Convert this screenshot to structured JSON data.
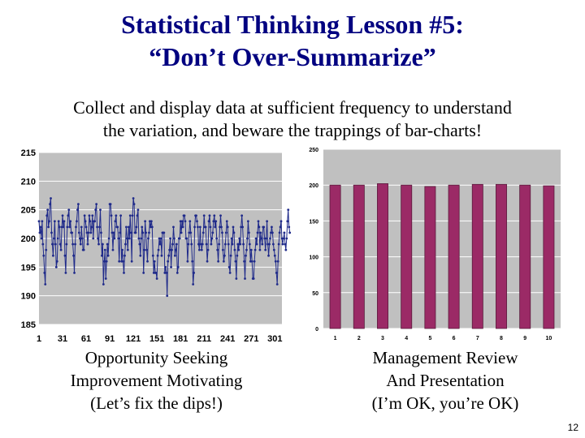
{
  "slide": {
    "title_line1": "Statistical Thinking Lesson #5:",
    "title_line2": "“Don’t Over-Summarize”",
    "subtitle_line1": "Collect and display data at sufficient frequency to understand",
    "subtitle_line2": "the variation, and beware the trappings of bar-charts!",
    "caption_left": [
      "Opportunity Seeking",
      "Improvement Motivating",
      "(Let’s fix the dips!)"
    ],
    "caption_right": [
      "Management Review",
      "And Presentation",
      "(I’m OK, you’re OK)"
    ],
    "page_number": "12",
    "colors": {
      "title": "#000080",
      "plot_bg": "#c0c0c0",
      "line": "#1f2a8a",
      "bar": "#9b2a66"
    }
  },
  "chart_data": [
    {
      "type": "line",
      "x_range": [
        1,
        310
      ],
      "ylim": [
        185,
        215
      ],
      "y_ticks": [
        185,
        190,
        195,
        200,
        205,
        210,
        215
      ],
      "x_tick_labels": [
        "1",
        "31",
        "61",
        "91",
        "121",
        "151",
        "181",
        "211",
        "241",
        "271",
        "301"
      ],
      "grid": true,
      "markers": true,
      "series": [
        {
          "values": [
            203,
            201,
            202,
            200,
            203,
            199,
            197,
            194,
            192,
            198,
            204,
            205,
            202,
            203,
            206,
            207,
            201,
            199,
            197,
            200,
            203,
            199,
            195,
            196,
            200,
            203,
            202,
            199,
            198,
            202,
            204,
            202,
            203,
            197,
            194,
            199,
            202,
            204,
            205,
            202,
            203,
            201,
            201,
            199,
            197,
            194,
            199,
            202,
            203,
            205,
            206,
            201,
            200,
            199,
            202,
            200,
            198,
            198,
            204,
            203,
            202,
            201,
            199,
            201,
            204,
            203,
            201,
            202,
            204,
            200,
            203,
            203,
            205,
            206,
            202,
            200,
            199,
            202,
            205,
            201,
            197,
            199,
            192,
            196,
            198,
            193,
            196,
            199,
            197,
            200,
            206,
            206,
            204,
            201,
            198,
            201,
            200,
            203,
            204,
            202,
            202,
            200,
            196,
            201,
            204,
            196,
            198,
            196,
            194,
            197,
            199,
            202,
            200,
            198,
            202,
            200,
            204,
            201,
            196,
            204,
            207,
            206,
            201,
            201,
            202,
            204,
            205,
            200,
            199,
            197,
            200,
            202,
            201,
            194,
            198,
            203,
            201,
            198,
            196,
            200,
            201,
            203,
            202,
            203,
            202,
            197,
            194,
            196,
            194,
            194,
            193,
            197,
            198,
            200,
            199,
            200,
            197,
            201,
            201,
            201,
            194,
            195,
            194,
            190,
            196,
            197,
            198,
            200,
            195,
            198,
            199,
            202,
            200,
            197,
            198,
            199,
            194,
            195,
            200,
            200,
            203,
            201,
            203,
            202,
            204,
            204,
            203,
            200,
            200,
            196,
            199,
            201,
            203,
            201,
            199,
            196,
            192,
            194,
            202,
            204,
            204,
            203,
            202,
            199,
            198,
            202,
            199,
            198,
            199,
            201,
            204,
            202,
            202,
            199,
            196,
            198,
            203,
            204,
            202,
            199,
            200,
            201,
            203,
            204,
            202,
            203,
            200,
            198,
            196,
            199,
            202,
            204,
            202,
            201,
            198,
            196,
            197,
            199,
            201,
            203,
            202,
            199,
            195,
            194,
            197,
            200,
            199,
            202,
            201,
            198,
            196,
            193,
            197,
            199,
            198,
            200,
            199,
            202,
            204,
            202,
            199,
            196,
            193,
            197,
            198,
            200,
            203,
            201,
            199,
            196,
            198,
            196,
            193,
            193,
            196,
            198,
            200,
            199,
            201,
            203,
            202,
            198,
            201,
            200,
            199,
            202,
            202,
            200,
            198,
            200,
            203,
            199,
            197,
            199,
            200,
            201,
            202,
            201,
            199,
            198,
            197,
            196,
            194,
            192,
            196,
            199,
            201,
            202,
            203,
            200,
            199,
            200,
            201,
            199,
            198,
            200,
            203,
            205,
            202,
            201
          ]
        }
      ]
    },
    {
      "type": "bar",
      "categories": [
        "1",
        "2",
        "3",
        "4",
        "5",
        "6",
        "7",
        "8",
        "9",
        "10"
      ],
      "values": [
        200,
        200,
        202,
        200,
        198,
        200,
        201,
        201,
        200,
        199
      ],
      "ylim": [
        0,
        250
      ],
      "y_ticks": [
        0,
        50,
        100,
        150,
        200,
        250
      ],
      "grid": true
    }
  ]
}
